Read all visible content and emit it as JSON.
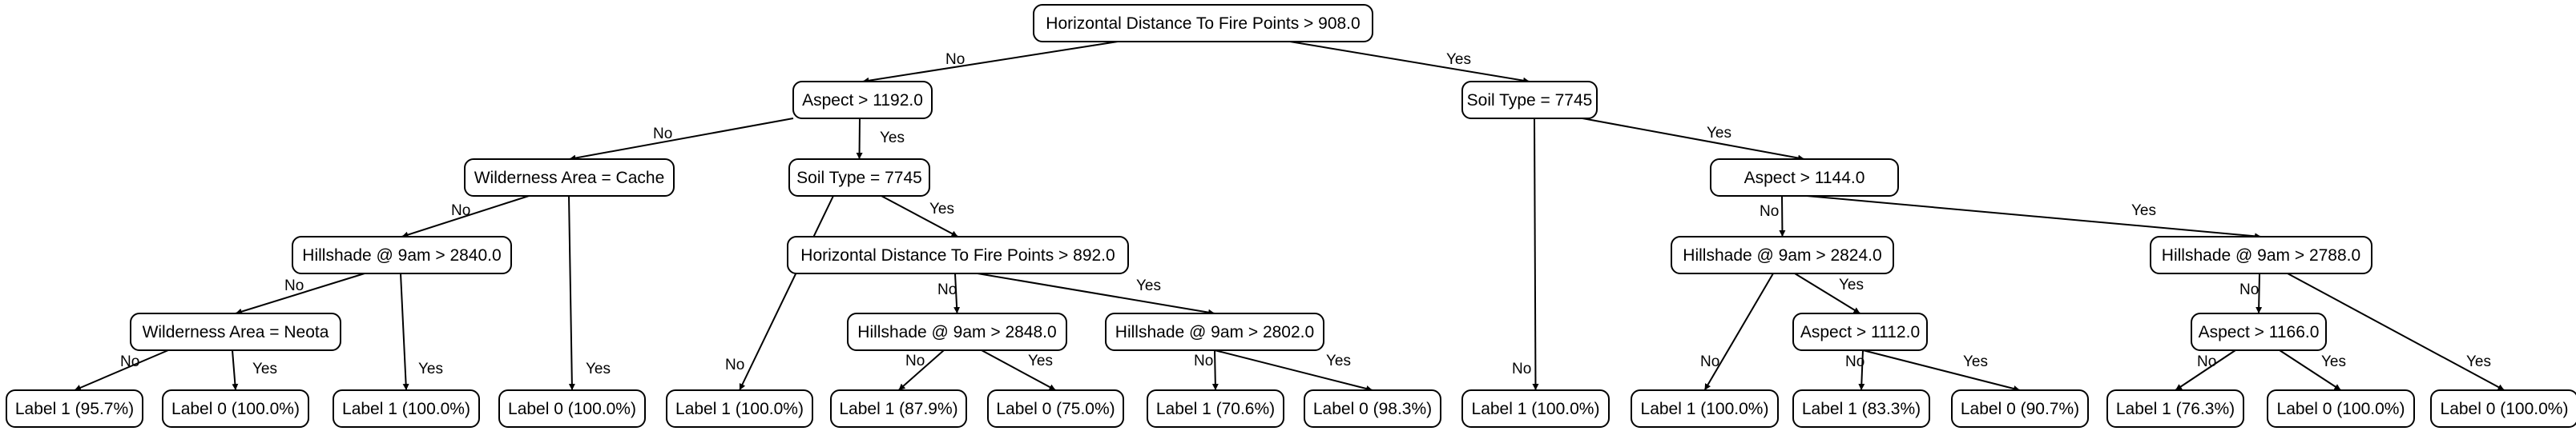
{
  "nodes": {
    "n0": "Horizontal Distance To Fire Points > 908.0",
    "n1": "Aspect > 1192.0",
    "n2": "Soil Type = 7745",
    "n3": "Wilderness Area = Cache",
    "n4": "Soil Type = 7745",
    "n5": "Aspect > 1144.0",
    "n6": "Hillshade @ 9am > 2840.0",
    "n7": "Horizontal Distance To Fire Points > 892.0",
    "n8": "Hillshade @ 9am > 2824.0",
    "n9": "Hillshade @ 9am > 2788.0",
    "n10": "Wilderness Area = Neota",
    "n11": "Hillshade @ 9am > 2848.0",
    "n12": "Hillshade @ 9am > 2802.0",
    "n13": "Aspect > 1112.0",
    "n14": "Aspect > 1166.0",
    "l1": "Label 1 (95.7%)",
    "l2": "Label 0 (100.0%)",
    "l3": "Label 1 (100.0%)",
    "l4": "Label 0 (100.0%)",
    "l5": "Label 1 (100.0%)",
    "l6": "Label 1 (87.9%)",
    "l7": "Label 0 (75.0%)",
    "l8": "Label 1 (70.6%)",
    "l9": "Label 0 (98.3%)",
    "l10": "Label 1 (100.0%)",
    "l11": "Label 1 (100.0%)",
    "l12": "Label 1 (83.3%)",
    "l13": "Label 0 (90.7%)",
    "l14": "Label 1 (76.3%)",
    "l15": "Label 0 (100.0%)",
    "l16": "Label 0 (100.0%)"
  },
  "edge_labels": {
    "no": "No",
    "yes": "Yes"
  }
}
